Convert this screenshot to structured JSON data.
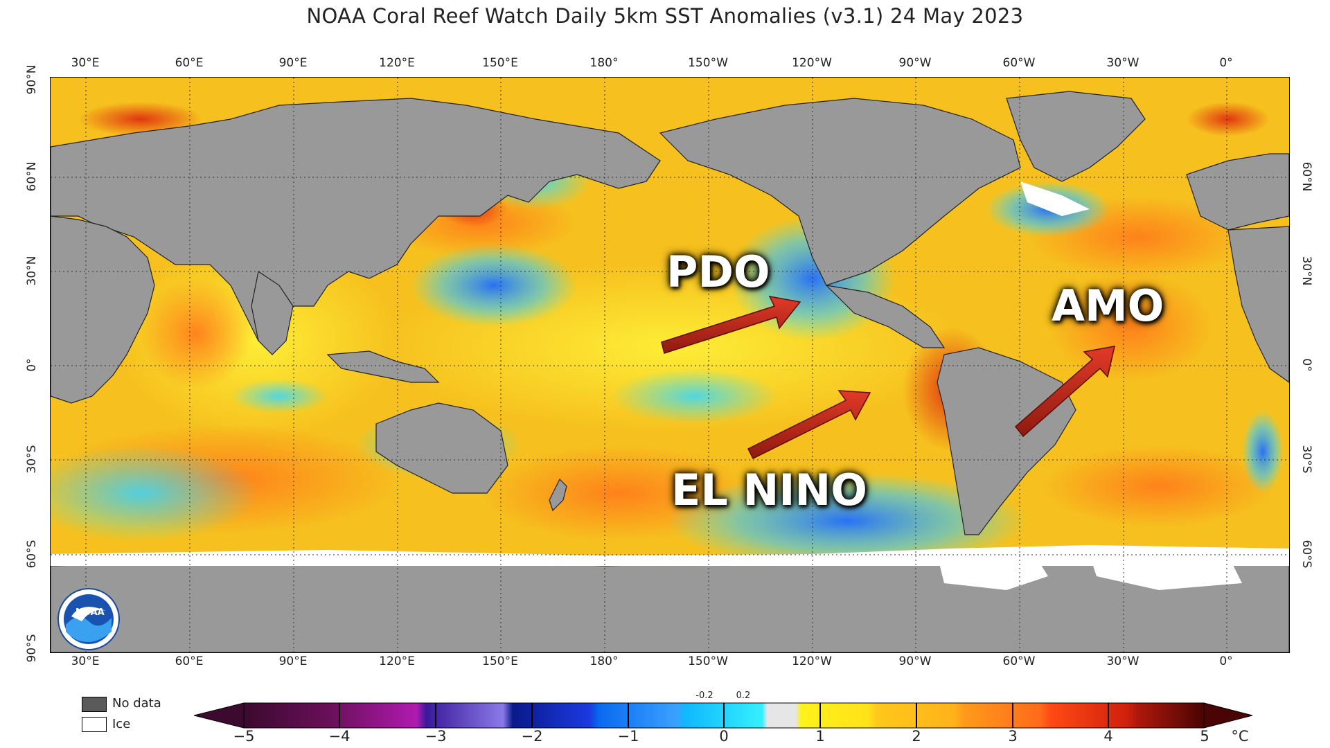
{
  "title": "NOAA Coral Reef Watch Daily 5km SST Anomalies  (v3.1)   24 May 2023",
  "longitude_labels": [
    "30°E",
    "60°E",
    "90°E",
    "120°E",
    "150°E",
    "180°",
    "150°W",
    "120°W",
    "90°W",
    "60°W",
    "30°W",
    "0°"
  ],
  "latitude_labels_left": [
    "90°N",
    "60°N",
    "30°N",
    "0°",
    "30°S",
    "60°S",
    "90°S"
  ],
  "latitude_labels_right": [
    "60°N",
    "30°N",
    "0°",
    "30°S",
    "60°S"
  ],
  "callouts": {
    "pdo": "PDO",
    "el_nino": "EL NINO",
    "amo": "AMO"
  },
  "legend": {
    "no_data_label": "No data",
    "ice_label": "Ice",
    "no_data_color": "#5a5a5a",
    "ice_color": "#ffffff"
  },
  "colorbar": {
    "ticks": [
      "−5",
      "−4",
      "−3",
      "−2",
      "−1",
      "0",
      "1",
      "2",
      "3",
      "4",
      "5"
    ],
    "unit": "°C",
    "small_ticks": [
      "-0.2",
      "0.2"
    ],
    "range": [
      -5,
      5
    ],
    "colors": {
      "m5": "#3b0a2e",
      "m4": "#8c1a8c",
      "m3": "#5a4fd0",
      "m2": "#0a2aa8",
      "m1": "#1f8cff",
      "m02": "#35e6ff",
      "zero": "#e6e6e6",
      "p02": "#fff21a",
      "p1": "#ffd21a",
      "p2": "#ffa21a",
      "p3": "#ff5a1a",
      "p4": "#d0200e",
      "p5": "#4a0404"
    }
  },
  "logo": "NOAA",
  "colors": {
    "land": "#999999",
    "ocean_base": "#f7c51e",
    "arrow": "#c0271a"
  }
}
